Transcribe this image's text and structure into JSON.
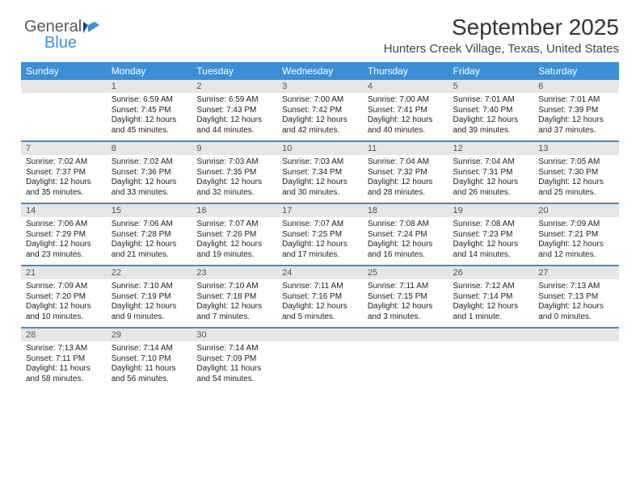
{
  "brand": {
    "part1": "General",
    "part2": "Blue"
  },
  "title": "September 2025",
  "location": "Hunters Creek Village, Texas, United States",
  "colors": {
    "accent": "#3b8fd6",
    "header_bg": "#3b8fd6",
    "header_text": "#ffffff",
    "daynum_bg": "#e6e6e6",
    "daynum_text": "#555555",
    "body_text": "#222222",
    "row_border": "#3b8fd6",
    "page_bg": "#ffffff"
  },
  "typography": {
    "title_fontsize": 28,
    "location_fontsize": 15,
    "weekday_fontsize": 12,
    "daynum_fontsize": 11,
    "cell_fontsize": 10,
    "font_family": "Arial"
  },
  "weekdays": [
    "Sunday",
    "Monday",
    "Tuesday",
    "Wednesday",
    "Thursday",
    "Friday",
    "Saturday"
  ],
  "weeks": [
    [
      {
        "blank": true
      },
      {
        "day": "1",
        "sunrise": "Sunrise: 6:59 AM",
        "sunset": "Sunset: 7:45 PM",
        "daylight1": "Daylight: 12 hours",
        "daylight2": "and 45 minutes."
      },
      {
        "day": "2",
        "sunrise": "Sunrise: 6:59 AM",
        "sunset": "Sunset: 7:43 PM",
        "daylight1": "Daylight: 12 hours",
        "daylight2": "and 44 minutes."
      },
      {
        "day": "3",
        "sunrise": "Sunrise: 7:00 AM",
        "sunset": "Sunset: 7:42 PM",
        "daylight1": "Daylight: 12 hours",
        "daylight2": "and 42 minutes."
      },
      {
        "day": "4",
        "sunrise": "Sunrise: 7:00 AM",
        "sunset": "Sunset: 7:41 PM",
        "daylight1": "Daylight: 12 hours",
        "daylight2": "and 40 minutes."
      },
      {
        "day": "5",
        "sunrise": "Sunrise: 7:01 AM",
        "sunset": "Sunset: 7:40 PM",
        "daylight1": "Daylight: 12 hours",
        "daylight2": "and 39 minutes."
      },
      {
        "day": "6",
        "sunrise": "Sunrise: 7:01 AM",
        "sunset": "Sunset: 7:39 PM",
        "daylight1": "Daylight: 12 hours",
        "daylight2": "and 37 minutes."
      }
    ],
    [
      {
        "day": "7",
        "sunrise": "Sunrise: 7:02 AM",
        "sunset": "Sunset: 7:37 PM",
        "daylight1": "Daylight: 12 hours",
        "daylight2": "and 35 minutes."
      },
      {
        "day": "8",
        "sunrise": "Sunrise: 7:02 AM",
        "sunset": "Sunset: 7:36 PM",
        "daylight1": "Daylight: 12 hours",
        "daylight2": "and 33 minutes."
      },
      {
        "day": "9",
        "sunrise": "Sunrise: 7:03 AM",
        "sunset": "Sunset: 7:35 PM",
        "daylight1": "Daylight: 12 hours",
        "daylight2": "and 32 minutes."
      },
      {
        "day": "10",
        "sunrise": "Sunrise: 7:03 AM",
        "sunset": "Sunset: 7:34 PM",
        "daylight1": "Daylight: 12 hours",
        "daylight2": "and 30 minutes."
      },
      {
        "day": "11",
        "sunrise": "Sunrise: 7:04 AM",
        "sunset": "Sunset: 7:32 PM",
        "daylight1": "Daylight: 12 hours",
        "daylight2": "and 28 minutes."
      },
      {
        "day": "12",
        "sunrise": "Sunrise: 7:04 AM",
        "sunset": "Sunset: 7:31 PM",
        "daylight1": "Daylight: 12 hours",
        "daylight2": "and 26 minutes."
      },
      {
        "day": "13",
        "sunrise": "Sunrise: 7:05 AM",
        "sunset": "Sunset: 7:30 PM",
        "daylight1": "Daylight: 12 hours",
        "daylight2": "and 25 minutes."
      }
    ],
    [
      {
        "day": "14",
        "sunrise": "Sunrise: 7:06 AM",
        "sunset": "Sunset: 7:29 PM",
        "daylight1": "Daylight: 12 hours",
        "daylight2": "and 23 minutes."
      },
      {
        "day": "15",
        "sunrise": "Sunrise: 7:06 AM",
        "sunset": "Sunset: 7:28 PM",
        "daylight1": "Daylight: 12 hours",
        "daylight2": "and 21 minutes."
      },
      {
        "day": "16",
        "sunrise": "Sunrise: 7:07 AM",
        "sunset": "Sunset: 7:26 PM",
        "daylight1": "Daylight: 12 hours",
        "daylight2": "and 19 minutes."
      },
      {
        "day": "17",
        "sunrise": "Sunrise: 7:07 AM",
        "sunset": "Sunset: 7:25 PM",
        "daylight1": "Daylight: 12 hours",
        "daylight2": "and 17 minutes."
      },
      {
        "day": "18",
        "sunrise": "Sunrise: 7:08 AM",
        "sunset": "Sunset: 7:24 PM",
        "daylight1": "Daylight: 12 hours",
        "daylight2": "and 16 minutes."
      },
      {
        "day": "19",
        "sunrise": "Sunrise: 7:08 AM",
        "sunset": "Sunset: 7:23 PM",
        "daylight1": "Daylight: 12 hours",
        "daylight2": "and 14 minutes."
      },
      {
        "day": "20",
        "sunrise": "Sunrise: 7:09 AM",
        "sunset": "Sunset: 7:21 PM",
        "daylight1": "Daylight: 12 hours",
        "daylight2": "and 12 minutes."
      }
    ],
    [
      {
        "day": "21",
        "sunrise": "Sunrise: 7:09 AM",
        "sunset": "Sunset: 7:20 PM",
        "daylight1": "Daylight: 12 hours",
        "daylight2": "and 10 minutes."
      },
      {
        "day": "22",
        "sunrise": "Sunrise: 7:10 AM",
        "sunset": "Sunset: 7:19 PM",
        "daylight1": "Daylight: 12 hours",
        "daylight2": "and 9 minutes."
      },
      {
        "day": "23",
        "sunrise": "Sunrise: 7:10 AM",
        "sunset": "Sunset: 7:18 PM",
        "daylight1": "Daylight: 12 hours",
        "daylight2": "and 7 minutes."
      },
      {
        "day": "24",
        "sunrise": "Sunrise: 7:11 AM",
        "sunset": "Sunset: 7:16 PM",
        "daylight1": "Daylight: 12 hours",
        "daylight2": "and 5 minutes."
      },
      {
        "day": "25",
        "sunrise": "Sunrise: 7:11 AM",
        "sunset": "Sunset: 7:15 PM",
        "daylight1": "Daylight: 12 hours",
        "daylight2": "and 3 minutes."
      },
      {
        "day": "26",
        "sunrise": "Sunrise: 7:12 AM",
        "sunset": "Sunset: 7:14 PM",
        "daylight1": "Daylight: 12 hours",
        "daylight2": "and 1 minute."
      },
      {
        "day": "27",
        "sunrise": "Sunrise: 7:13 AM",
        "sunset": "Sunset: 7:13 PM",
        "daylight1": "Daylight: 12 hours",
        "daylight2": "and 0 minutes."
      }
    ],
    [
      {
        "day": "28",
        "sunrise": "Sunrise: 7:13 AM",
        "sunset": "Sunset: 7:11 PM",
        "daylight1": "Daylight: 11 hours",
        "daylight2": "and 58 minutes."
      },
      {
        "day": "29",
        "sunrise": "Sunrise: 7:14 AM",
        "sunset": "Sunset: 7:10 PM",
        "daylight1": "Daylight: 11 hours",
        "daylight2": "and 56 minutes."
      },
      {
        "day": "30",
        "sunrise": "Sunrise: 7:14 AM",
        "sunset": "Sunset: 7:09 PM",
        "daylight1": "Daylight: 11 hours",
        "daylight2": "and 54 minutes."
      },
      {
        "blank": true
      },
      {
        "blank": true
      },
      {
        "blank": true
      },
      {
        "blank": true
      }
    ]
  ]
}
